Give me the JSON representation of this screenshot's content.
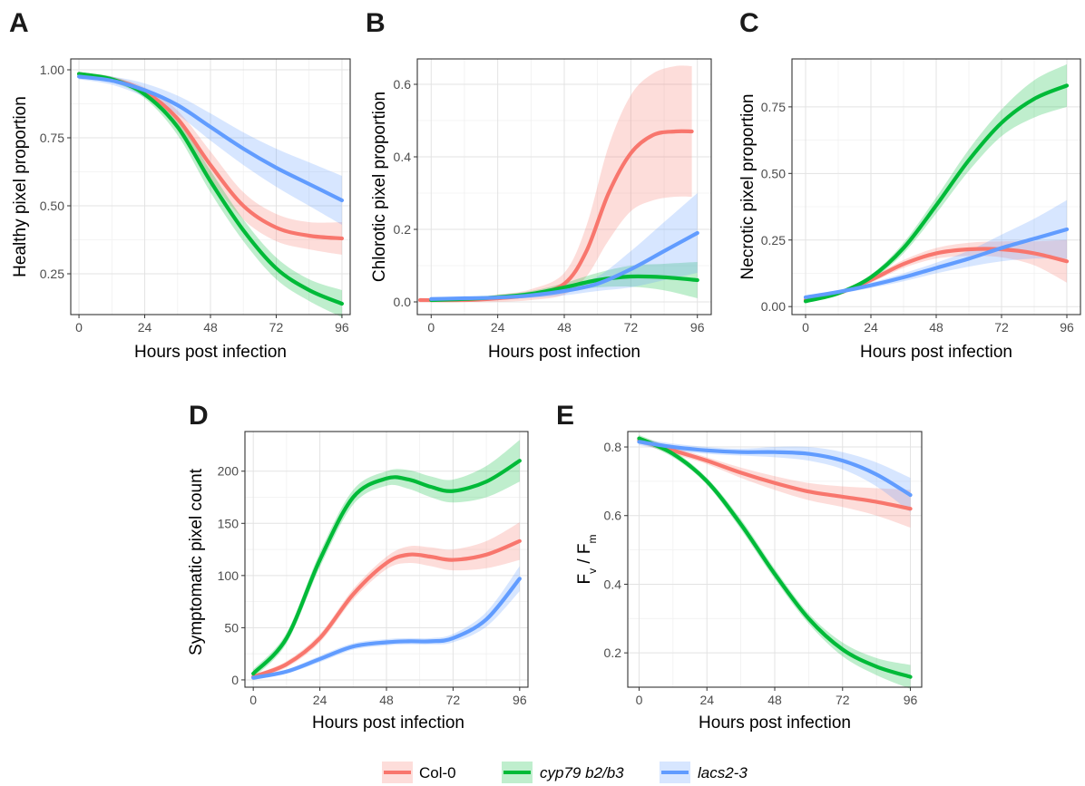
{
  "colors": {
    "col0": "#F8766D",
    "cyp79": "#00BA38",
    "lacs": "#619CFF"
  },
  "legend": [
    {
      "key": "col0",
      "label": "Col-0",
      "italic": false
    },
    {
      "key": "cyp79",
      "label": "cyp79 b2/b3",
      "italic": true
    },
    {
      "key": "lacs",
      "label": "lacs2-3",
      "italic": true
    }
  ],
  "chart_data": [
    {
      "panel": "A",
      "type": "line",
      "xlabel": "Hours post infection",
      "ylabel": "Healthy pixel proportion",
      "xlim": [
        -3,
        99
      ],
      "ylim": [
        0.1,
        1.04
      ],
      "x_ticks": [
        0,
        24,
        48,
        72,
        96
      ],
      "x_tick_labels": [
        "0",
        "24",
        "48",
        "72",
        "96"
      ],
      "y_ticks": [
        0.25,
        0.5,
        0.75,
        1.0
      ],
      "y_tick_labels": [
        "0.25",
        "0.50",
        "0.75",
        "1.00"
      ],
      "grid": true,
      "series": [
        {
          "key": "col0",
          "x": [
            0,
            12,
            24,
            36,
            48,
            60,
            72,
            84,
            96
          ],
          "y": [
            0.985,
            0.965,
            0.92,
            0.82,
            0.65,
            0.5,
            0.42,
            0.39,
            0.38
          ],
          "lower": [
            0.98,
            0.955,
            0.905,
            0.79,
            0.6,
            0.45,
            0.37,
            0.34,
            0.32
          ],
          "upper": [
            0.99,
            0.975,
            0.935,
            0.85,
            0.7,
            0.55,
            0.47,
            0.44,
            0.44
          ]
        },
        {
          "key": "cyp79",
          "x": [
            0,
            12,
            24,
            36,
            48,
            60,
            72,
            84,
            96
          ],
          "y": [
            0.985,
            0.965,
            0.91,
            0.79,
            0.59,
            0.41,
            0.27,
            0.19,
            0.14
          ],
          "lower": [
            0.98,
            0.955,
            0.895,
            0.76,
            0.55,
            0.37,
            0.23,
            0.15,
            0.09
          ],
          "upper": [
            0.99,
            0.975,
            0.925,
            0.82,
            0.63,
            0.45,
            0.31,
            0.23,
            0.19
          ]
        },
        {
          "key": "lacs",
          "x": [
            0,
            12,
            24,
            36,
            48,
            60,
            72,
            84,
            96
          ],
          "y": [
            0.975,
            0.96,
            0.925,
            0.87,
            0.79,
            0.71,
            0.64,
            0.58,
            0.52
          ],
          "lower": [
            0.965,
            0.945,
            0.9,
            0.835,
            0.74,
            0.65,
            0.57,
            0.5,
            0.43
          ],
          "upper": [
            0.985,
            0.975,
            0.95,
            0.905,
            0.84,
            0.77,
            0.71,
            0.66,
            0.61
          ]
        }
      ]
    },
    {
      "panel": "B",
      "type": "line",
      "xlabel": "Hours post infection",
      "ylabel": "Chlorotic pixel proportion",
      "xlim": [
        -5,
        101
      ],
      "ylim": [
        -0.035,
        0.67
      ],
      "x_ticks": [
        0,
        24,
        48,
        72,
        96
      ],
      "x_tick_labels": [
        "0",
        "24",
        "48",
        "72",
        "96"
      ],
      "y_ticks": [
        0.0,
        0.2,
        0.4,
        0.6
      ],
      "y_tick_labels": [
        "0.0",
        "0.2",
        "0.4",
        "0.6"
      ],
      "grid": true,
      "series": [
        {
          "key": "col0",
          "x": [
            -4,
            12,
            24,
            36,
            48,
            56,
            64,
            72,
            80,
            88,
            94
          ],
          "y": [
            0.005,
            0.005,
            0.01,
            0.02,
            0.05,
            0.14,
            0.3,
            0.41,
            0.46,
            0.47,
            0.47
          ],
          "lower": [
            0.0,
            0.0,
            0.0,
            0.005,
            0.02,
            0.07,
            0.17,
            0.25,
            0.28,
            0.29,
            0.29
          ],
          "upper": [
            0.01,
            0.01,
            0.02,
            0.035,
            0.08,
            0.21,
            0.43,
            0.57,
            0.63,
            0.65,
            0.65
          ]
        },
        {
          "key": "cyp79",
          "x": [
            0,
            12,
            24,
            36,
            48,
            60,
            72,
            84,
            96
          ],
          "y": [
            0.005,
            0.008,
            0.013,
            0.022,
            0.04,
            0.06,
            0.07,
            0.068,
            0.06
          ],
          "lower": [
            0.0,
            0.003,
            0.007,
            0.014,
            0.028,
            0.04,
            0.042,
            0.032,
            0.01
          ],
          "upper": [
            0.01,
            0.013,
            0.019,
            0.03,
            0.052,
            0.08,
            0.1,
            0.105,
            0.11
          ]
        },
        {
          "key": "lacs",
          "x": [
            0,
            12,
            24,
            36,
            48,
            60,
            72,
            84,
            96
          ],
          "y": [
            0.008,
            0.01,
            0.012,
            0.018,
            0.03,
            0.05,
            0.09,
            0.14,
            0.19
          ],
          "lower": [
            0.003,
            0.005,
            0.007,
            0.011,
            0.018,
            0.03,
            0.04,
            0.06,
            0.08
          ],
          "upper": [
            0.013,
            0.015,
            0.017,
            0.025,
            0.042,
            0.07,
            0.14,
            0.22,
            0.3
          ]
        }
      ]
    },
    {
      "panel": "C",
      "type": "line",
      "xlabel": "Hours post infection",
      "ylabel": "Necrotic pixel proportion",
      "xlim": [
        -5,
        101
      ],
      "ylim": [
        -0.03,
        0.93
      ],
      "x_ticks": [
        0,
        24,
        48,
        72,
        96
      ],
      "x_tick_labels": [
        "0",
        "24",
        "48",
        "72",
        "96"
      ],
      "y_ticks": [
        0.0,
        0.25,
        0.5,
        0.75
      ],
      "y_tick_labels": [
        "0.00",
        "0.25",
        "0.50",
        "0.75"
      ],
      "grid": true,
      "series": [
        {
          "key": "col0",
          "x": [
            0,
            12,
            24,
            36,
            48,
            60,
            72,
            84,
            96
          ],
          "y": [
            0.025,
            0.05,
            0.1,
            0.16,
            0.2,
            0.215,
            0.215,
            0.2,
            0.17
          ],
          "lower": [
            0.02,
            0.043,
            0.09,
            0.145,
            0.18,
            0.19,
            0.185,
            0.155,
            0.09
          ],
          "upper": [
            0.03,
            0.057,
            0.11,
            0.175,
            0.22,
            0.24,
            0.245,
            0.245,
            0.25
          ]
        },
        {
          "key": "cyp79",
          "x": [
            0,
            12,
            24,
            36,
            48,
            60,
            72,
            84,
            96
          ],
          "y": [
            0.02,
            0.05,
            0.11,
            0.22,
            0.38,
            0.55,
            0.69,
            0.78,
            0.83
          ],
          "lower": [
            0.015,
            0.043,
            0.1,
            0.2,
            0.35,
            0.51,
            0.64,
            0.71,
            0.75
          ],
          "upper": [
            0.025,
            0.057,
            0.12,
            0.24,
            0.41,
            0.59,
            0.74,
            0.85,
            0.91
          ]
        },
        {
          "key": "lacs",
          "x": [
            0,
            12,
            24,
            36,
            48,
            60,
            72,
            84,
            96
          ],
          "y": [
            0.035,
            0.055,
            0.08,
            0.11,
            0.145,
            0.18,
            0.22,
            0.255,
            0.29
          ],
          "lower": [
            0.03,
            0.048,
            0.07,
            0.095,
            0.125,
            0.15,
            0.17,
            0.18,
            0.18
          ],
          "upper": [
            0.04,
            0.062,
            0.09,
            0.125,
            0.165,
            0.21,
            0.27,
            0.33,
            0.4
          ]
        }
      ]
    },
    {
      "panel": "D",
      "type": "line",
      "xlabel": "Hours post infection",
      "ylabel": "Symptomatic pixel count",
      "xlim": [
        -3,
        99
      ],
      "ylim": [
        -7,
        238
      ],
      "x_ticks": [
        0,
        24,
        48,
        72,
        96
      ],
      "x_tick_labels": [
        "0",
        "24",
        "48",
        "72",
        "96"
      ],
      "y_ticks": [
        0,
        50,
        100,
        150,
        200
      ],
      "y_tick_labels": [
        "0",
        "50",
        "100",
        "150",
        "200"
      ],
      "grid": true,
      "series": [
        {
          "key": "col0",
          "x": [
            0,
            12,
            24,
            36,
            48,
            56,
            64,
            72,
            84,
            96
          ],
          "y": [
            3,
            15,
            40,
            82,
            112,
            120,
            118,
            115,
            120,
            133
          ],
          "lower": [
            1,
            12,
            36,
            77,
            106,
            112,
            109,
            105,
            107,
            115
          ],
          "upper": [
            5,
            18,
            44,
            87,
            118,
            128,
            127,
            125,
            133,
            151
          ]
        },
        {
          "key": "cyp79",
          "x": [
            0,
            12,
            24,
            36,
            48,
            56,
            64,
            72,
            84,
            96
          ],
          "y": [
            6,
            40,
            115,
            175,
            193,
            192,
            185,
            181,
            190,
            210
          ],
          "lower": [
            2,
            35,
            108,
            168,
            186,
            183,
            175,
            170,
            175,
            190
          ],
          "upper": [
            10,
            45,
            122,
            182,
            200,
            201,
            195,
            192,
            205,
            230
          ]
        },
        {
          "key": "lacs",
          "x": [
            0,
            12,
            24,
            36,
            48,
            56,
            64,
            72,
            84,
            96
          ],
          "y": [
            2,
            8,
            20,
            32,
            36,
            37,
            37,
            40,
            58,
            97
          ],
          "lower": [
            0,
            6,
            17,
            29,
            33,
            34,
            34,
            36,
            51,
            85
          ],
          "upper": [
            4,
            10,
            23,
            35,
            39,
            40,
            40,
            44,
            65,
            109
          ]
        }
      ]
    },
    {
      "panel": "E",
      "type": "line",
      "xlabel": "Hours post infection",
      "ylabel": "F_v / F_m",
      "xlim": [
        -4,
        100
      ],
      "ylim": [
        0.1,
        0.845
      ],
      "x_ticks": [
        0,
        24,
        48,
        72,
        96
      ],
      "x_tick_labels": [
        "0",
        "24",
        "48",
        "72",
        "96"
      ],
      "y_ticks": [
        0.2,
        0.4,
        0.6,
        0.8
      ],
      "y_tick_labels": [
        "0.2",
        "0.4",
        "0.6",
        "0.8"
      ],
      "grid": true,
      "series": [
        {
          "key": "col0",
          "x": [
            0,
            12,
            24,
            36,
            48,
            60,
            72,
            84,
            96
          ],
          "y": [
            0.82,
            0.79,
            0.76,
            0.725,
            0.695,
            0.67,
            0.655,
            0.64,
            0.62
          ],
          "lower": [
            0.81,
            0.78,
            0.75,
            0.71,
            0.675,
            0.645,
            0.625,
            0.6,
            0.565
          ],
          "upper": [
            0.83,
            0.8,
            0.77,
            0.74,
            0.715,
            0.695,
            0.685,
            0.68,
            0.675
          ]
        },
        {
          "key": "cyp79",
          "x": [
            0,
            12,
            24,
            36,
            48,
            60,
            72,
            84,
            96
          ],
          "y": [
            0.825,
            0.78,
            0.7,
            0.575,
            0.43,
            0.3,
            0.21,
            0.16,
            0.13
          ],
          "lower": [
            0.815,
            0.77,
            0.69,
            0.56,
            0.415,
            0.285,
            0.19,
            0.135,
            0.095
          ],
          "upper": [
            0.835,
            0.79,
            0.71,
            0.59,
            0.445,
            0.315,
            0.23,
            0.185,
            0.165
          ]
        },
        {
          "key": "lacs",
          "x": [
            0,
            12,
            24,
            36,
            48,
            60,
            72,
            84,
            96
          ],
          "y": [
            0.815,
            0.8,
            0.79,
            0.785,
            0.785,
            0.78,
            0.76,
            0.72,
            0.66
          ],
          "lower": [
            0.805,
            0.79,
            0.78,
            0.775,
            0.77,
            0.76,
            0.735,
            0.685,
            0.61
          ],
          "upper": [
            0.825,
            0.81,
            0.8,
            0.795,
            0.8,
            0.8,
            0.785,
            0.755,
            0.71
          ]
        }
      ]
    }
  ]
}
